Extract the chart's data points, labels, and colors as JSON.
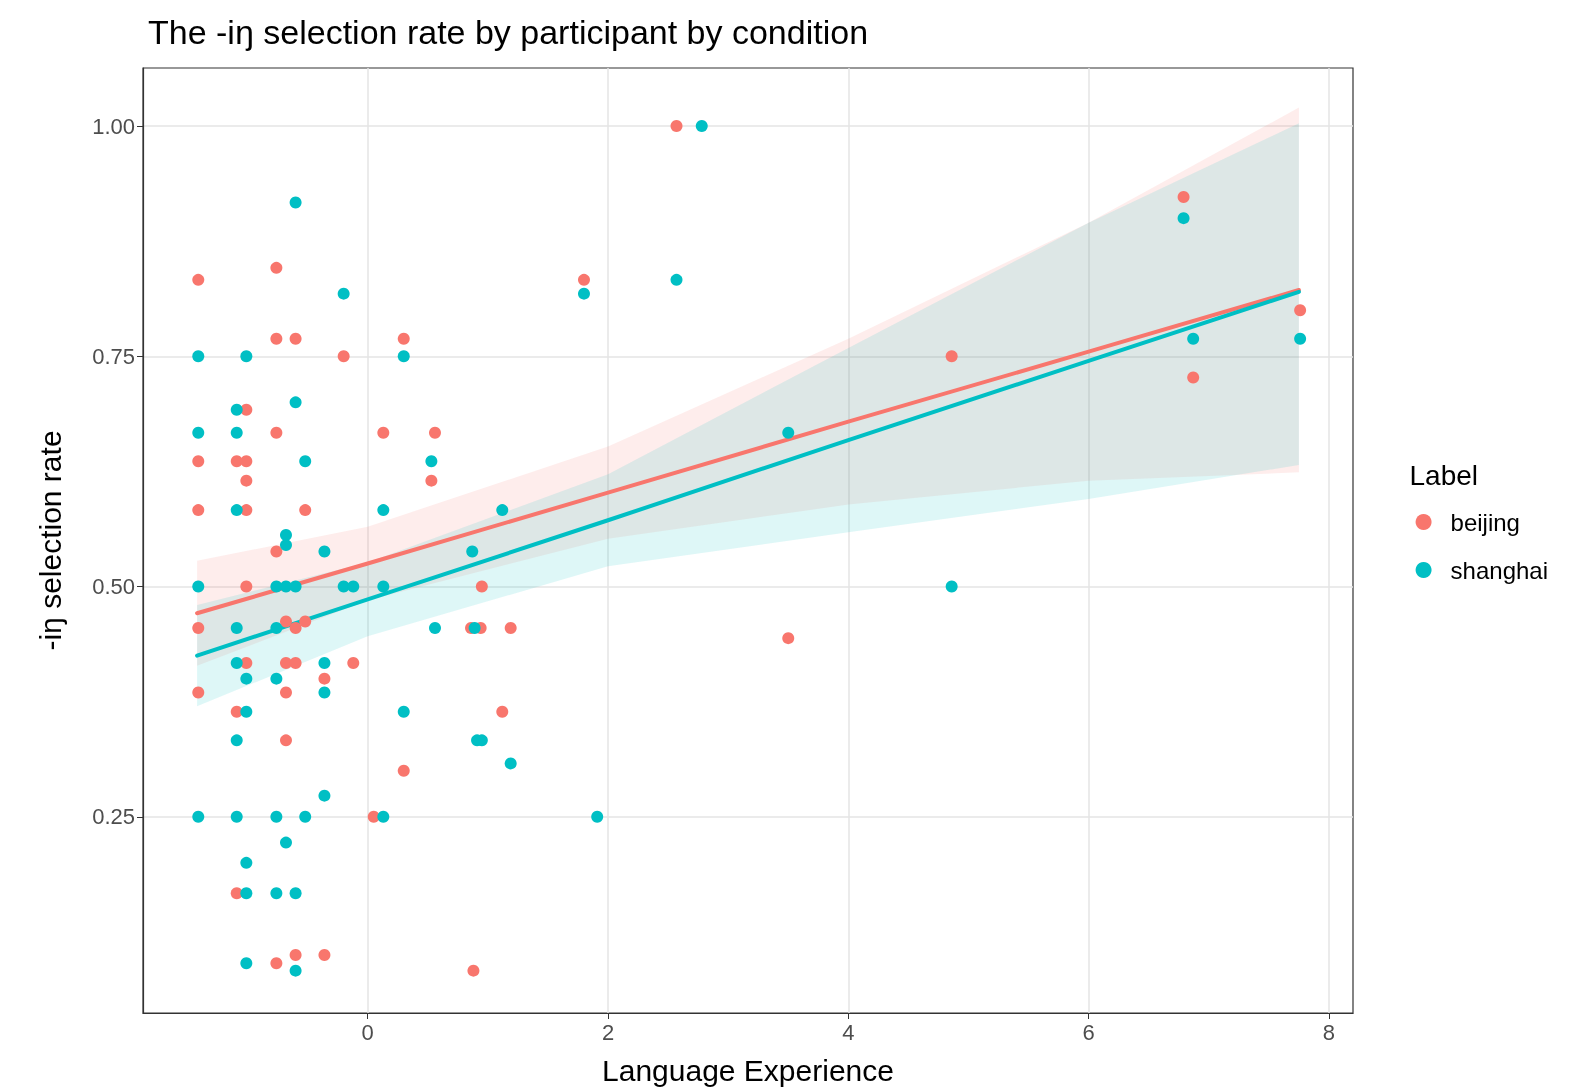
{
  "chart_data": {
    "type": "scatter",
    "title": "The -iŋ selection rate by participant by condition",
    "xlabel": "Language Experience",
    "ylabel": "-iŋ selection rate",
    "legend_title": "Label",
    "legend": "right",
    "grid": true,
    "marker": "circle",
    "xlim": [
      -1.87,
      8.2
    ],
    "xticks": [
      0,
      2,
      4,
      6,
      8
    ],
    "ylim": [
      0.037,
      1.063
    ],
    "yticks": [
      {
        "value": 0.25,
        "label": "0.25"
      },
      {
        "value": 0.5,
        "label": "0.50"
      },
      {
        "value": 0.75,
        "label": "0.75"
      },
      {
        "value": 1,
        "label": "1.00"
      }
    ],
    "series": [
      {
        "type": "line",
        "marker": "none",
        "color": "#f8766d",
        "x": [
          -1.42,
          0,
          2,
          4,
          6,
          7.75
        ],
        "values": [
          0.471,
          0.525,
          0.602,
          0.679,
          0.755,
          0.822
        ],
        "lower": [
          0.414,
          0.485,
          0.552,
          0.589,
          0.615,
          0.624
        ],
        "upper": [
          0.528,
          0.565,
          0.652,
          0.769,
          0.895,
          1.02
        ]
      },
      {
        "type": "line",
        "marker": "none",
        "color": "#00bfc4",
        "x": [
          -1.42,
          0,
          2,
          4,
          6,
          7.75
        ],
        "values": [
          0.425,
          0.486,
          0.572,
          0.659,
          0.745,
          0.82
        ],
        "lower": [
          0.37,
          0.446,
          0.522,
          0.559,
          0.595,
          0.632
        ],
        "upper": [
          0.48,
          0.526,
          0.622,
          0.759,
          0.895,
          1.003
        ]
      },
      {
        "name": "beijing",
        "color": "#f8766d",
        "x": [
          -1.41,
          -1.41,
          -1.41,
          -1.41,
          -1.41,
          -1.01,
          -1.09,
          -1.01,
          -1.01,
          -1.01,
          -1.01,
          -1.01,
          -1.09,
          -1.09,
          -0.76,
          -0.76,
          -0.6,
          -0.76,
          -0.76,
          -0.68,
          -0.6,
          -0.68,
          -0.6,
          -0.68,
          -0.68,
          -0.76,
          -0.6,
          -0.52,
          -0.52,
          -0.2,
          -0.36,
          -0.12,
          -0.36,
          0.3,
          0.13,
          0.56,
          0.53,
          0.05,
          0.3,
          0.86,
          0.94,
          0.95,
          1.19,
          1.12,
          0.88,
          1.8,
          2.57,
          3.5,
          4.86,
          6.79,
          6.87,
          7.76
        ],
        "values": [
          0.833,
          0.636,
          0.583,
          0.455,
          0.385,
          0.692,
          0.636,
          0.636,
          0.615,
          0.583,
          0.5,
          0.417,
          0.364,
          0.167,
          0.846,
          0.769,
          0.769,
          0.667,
          0.538,
          0.462,
          0.455,
          0.417,
          0.417,
          0.385,
          0.333,
          0.091,
          0.1,
          0.583,
          0.462,
          0.75,
          0.4,
          0.417,
          0.1,
          0.769,
          0.667,
          0.667,
          0.615,
          0.25,
          0.3,
          0.455,
          0.455,
          0.5,
          0.455,
          0.364,
          0.083,
          0.833,
          1,
          0.444,
          0.75,
          0.923,
          0.727,
          0.8
        ]
      },
      {
        "name": "shanghai",
        "color": "#00bfc4",
        "x": [
          -1.41,
          -1.41,
          -1.41,
          -1.41,
          -1.09,
          -1.09,
          -1.09,
          -1.09,
          -1.09,
          -1.09,
          -1.09,
          -1.01,
          -1.01,
          -1.01,
          -1.01,
          -1.01,
          -1.01,
          -0.6,
          -0.6,
          -0.52,
          -0.68,
          -0.68,
          -0.76,
          -0.68,
          -0.6,
          -0.76,
          -0.76,
          -0.76,
          -0.52,
          -0.68,
          -0.76,
          -0.6,
          -0.6,
          -0.2,
          -0.36,
          -0.2,
          -0.12,
          -0.36,
          -0.36,
          -0.36,
          0.13,
          0.13,
          0.3,
          0.3,
          0.13,
          0.53,
          0.56,
          0.87,
          0.89,
          0.91,
          0.95,
          1.12,
          1.19,
          1.8,
          1.91,
          2.57,
          2.78,
          3.5,
          4.86,
          6.79,
          6.87,
          7.76
        ],
        "values": [
          0.75,
          0.667,
          0.5,
          0.25,
          0.692,
          0.667,
          0.583,
          0.455,
          0.417,
          0.333,
          0.25,
          0.75,
          0.4,
          0.364,
          0.2,
          0.167,
          0.091,
          0.917,
          0.7,
          0.636,
          0.556,
          0.545,
          0.5,
          0.5,
          0.5,
          0.455,
          0.4,
          0.25,
          0.25,
          0.222,
          0.167,
          0.167,
          0.083,
          0.818,
          0.538,
          0.5,
          0.5,
          0.417,
          0.385,
          0.273,
          0.583,
          0.5,
          0.75,
          0.364,
          0.25,
          0.636,
          0.455,
          0.538,
          0.455,
          0.333,
          0.333,
          0.583,
          0.308,
          0.818,
          0.25,
          0.833,
          1,
          0.667,
          0.5,
          0.9,
          0.769,
          0.769
        ]
      }
    ]
  }
}
